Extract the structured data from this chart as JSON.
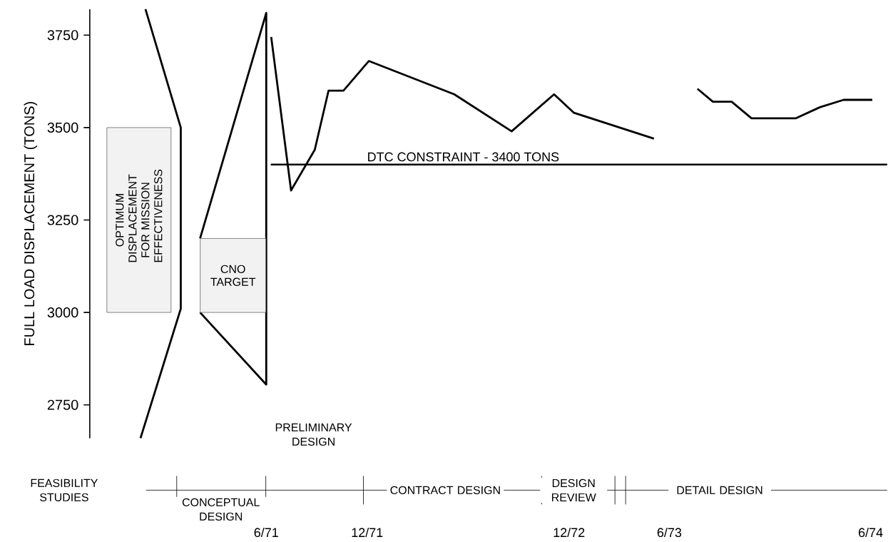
{
  "chart_data": {
    "type": "line",
    "ylabel": "FULL LOAD DISPLACEMENT (TONS)",
    "xlim": [
      "1970-07-16",
      "1974-07-01"
    ],
    "ylim": [
      2660,
      3820
    ],
    "xticks": [
      {
        "value": "1971-06",
        "label": "6/71"
      },
      {
        "value": "1971-12",
        "label": "12/71"
      },
      {
        "value": "1972-12",
        "label": "12/72"
      },
      {
        "value": "1973-06",
        "label": "6/73"
      },
      {
        "value": "1974-06",
        "label": "6/74"
      }
    ],
    "yticks": [
      2750,
      3000,
      3250,
      3500,
      3750
    ],
    "series": [
      {
        "color": "#000000",
        "x": [
          "1970-10-25",
          "1970-12-28",
          "1970-12-28",
          "1970-10-16"
        ],
        "values": [
          3820,
          3500,
          3010,
          2660
        ]
      },
      {
        "color": "#000000",
        "x": [
          "1971-02-01",
          "1971-06-01",
          "1971-06-01",
          "1971-02-01"
        ],
        "values": [
          3200,
          3810,
          2805,
          3000
        ]
      },
      {
        "color": "#000000",
        "x": [
          "1971-06-10",
          "1971-07-16",
          "1971-08-28",
          "1971-09-22",
          "1971-10-19",
          "1971-12-04",
          "1972-05-07",
          "1972-08-19",
          "1972-11-04",
          "1972-12-10",
          "1973-05-04"
        ],
        "values": [
          3745,
          3330,
          3440,
          3600,
          3600,
          3680,
          3590,
          3490,
          3590,
          3540,
          3470
        ]
      },
      {
        "color": "#000000",
        "x": [
          "1973-07-22",
          "1973-08-19",
          "1973-09-22",
          "1973-10-28",
          "1974-01-16",
          "1974-03-01",
          "1974-04-13",
          "1974-06-04"
        ],
        "values": [
          3605,
          3570,
          3570,
          3525,
          3525,
          3555,
          3575,
          3575
        ]
      }
    ],
    "ref_lines": [
      {
        "axis": "y",
        "value": 3400,
        "label": "DTC CONSTRAINT - 3400 TONS"
      }
    ],
    "bands": [
      {
        "axis": "y",
        "from": 3000,
        "to": 3500,
        "label": "OPTIMUM DISPLACEMENT FOR MISSION EFFECTIVENESS",
        "color": "#f2f2f2"
      },
      {
        "axis": "y",
        "from": 3000,
        "to": 3200,
        "label": "CNO TARGET",
        "color": "#f2f2f2"
      }
    ],
    "annotations": [
      "FEASIBILITY STUDIES",
      "CONCEPTUAL DESIGN",
      "PRELIMINARY DESIGN",
      "CONTRACT DESIGN",
      "DESIGN REVIEW",
      "DETAIL DESIGN"
    ],
    "marker": "none",
    "line_style": "solid"
  }
}
